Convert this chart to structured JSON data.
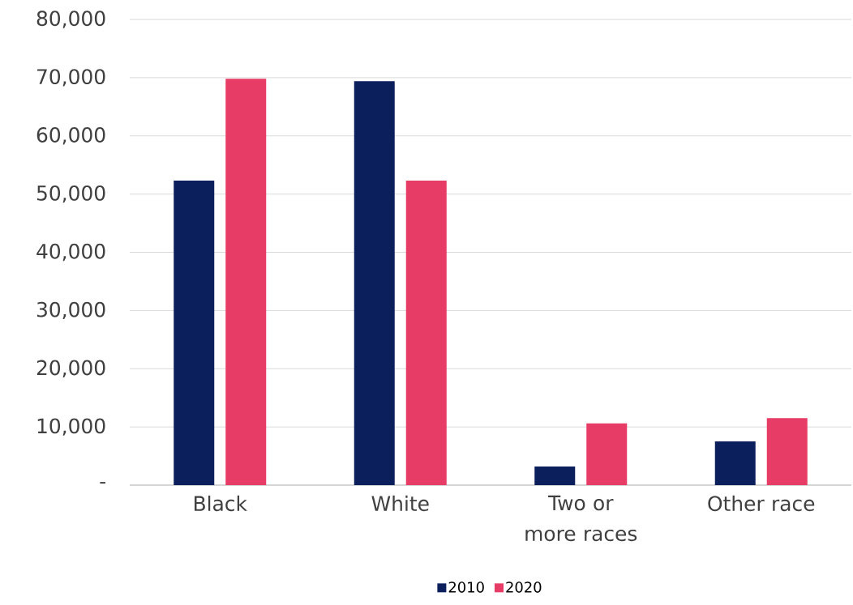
{
  "chart_data": {
    "type": "bar",
    "categories": [
      "Black",
      "White",
      "Two or more races",
      "Other race"
    ],
    "series": [
      {
        "name": "2010",
        "color": "#0b1f5c",
        "values": [
          52300,
          69400,
          3200,
          7500
        ]
      },
      {
        "name": "2020",
        "color": "#e63c66",
        "values": [
          69800,
          52300,
          10600,
          11500
        ]
      }
    ],
    "ylim": [
      0,
      80000
    ],
    "yticks": [
      {
        "value": 0,
        "label": "-"
      },
      {
        "value": 10000,
        "label": "10,000"
      },
      {
        "value": 20000,
        "label": "20,000"
      },
      {
        "value": 30000,
        "label": "30,000"
      },
      {
        "value": 40000,
        "label": "40,000"
      },
      {
        "value": 50000,
        "label": "50,000"
      },
      {
        "value": 60000,
        "label": "60,000"
      },
      {
        "value": 70000,
        "label": "70,000"
      },
      {
        "value": 80000,
        "label": "80,000"
      }
    ],
    "grid": "y",
    "legend": "bottom"
  }
}
